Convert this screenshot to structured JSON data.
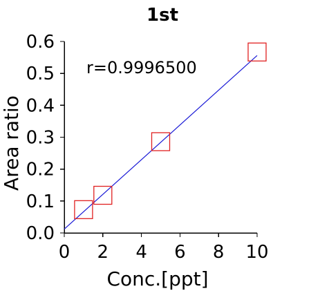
{
  "chart_data": {
    "type": "scatter",
    "title": "1st",
    "xlabel": "Conc.[ppt]",
    "ylabel": "Area ratio",
    "xlim": [
      0,
      10
    ],
    "ylim": [
      0.0,
      0.6
    ],
    "xticks": [
      0,
      2,
      4,
      6,
      8,
      10
    ],
    "yticks": [
      0.0,
      0.1,
      0.2,
      0.3,
      0.4,
      0.5,
      0.6
    ],
    "xtick_labels": [
      "0",
      "2",
      "4",
      "6",
      "8",
      "10"
    ],
    "ytick_labels": [
      "0.0",
      "0.1",
      "0.2",
      "0.3",
      "0.4",
      "0.5",
      "0.6"
    ],
    "grid": false,
    "legend": "none",
    "series": [
      {
        "marker": "square-open",
        "color": "#e02020",
        "x": [
          1,
          2,
          5,
          10
        ],
        "y": [
          0.073,
          0.118,
          0.286,
          0.567
        ]
      }
    ],
    "fit_line": {
      "color": "#1a1ad6",
      "x": [
        0,
        10
      ],
      "y": [
        0.012,
        0.556
      ]
    },
    "annotations": [
      {
        "text": "r=0.9996500"
      }
    ]
  }
}
